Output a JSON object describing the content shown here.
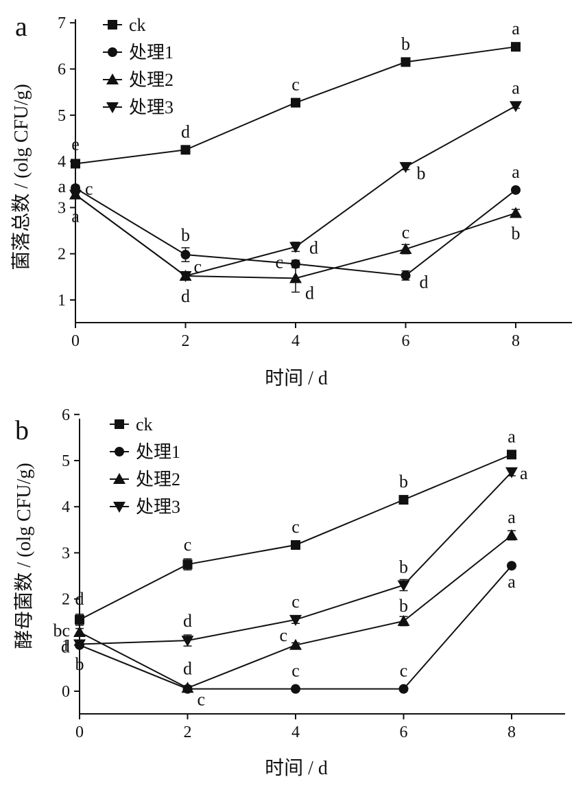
{
  "chart_data": [
    {
      "type": "line",
      "panel_label": "a",
      "xlabel": "时间 / d",
      "ylabel": "菌落总数 / (olg CFU/g)",
      "x": [
        0,
        2,
        4,
        6,
        8
      ],
      "x_tick_labels": [
        "0",
        "2",
        "4",
        "6",
        "8"
      ],
      "y_tick_labels": [
        "1",
        "2",
        "3",
        "4",
        "5",
        "6",
        "7"
      ],
      "xlim": [
        0,
        9
      ],
      "ylim": [
        0.5,
        7
      ],
      "legend_position": "top-left",
      "series": [
        {
          "name": "ck",
          "marker": "square",
          "values": [
            3.95,
            4.25,
            5.27,
            6.15,
            6.48
          ],
          "errors": [
            0.05,
            0.05,
            0.06,
            0.05,
            0.05
          ],
          "letters": [
            "e",
            "d",
            "c",
            "b",
            "a"
          ]
        },
        {
          "name": "处理1",
          "marker": "circle",
          "values": [
            3.42,
            1.98,
            1.78,
            1.53,
            3.38
          ],
          "errors": [
            0.06,
            0.15,
            0.08,
            0.1,
            0.05
          ],
          "letters": [
            "a",
            "b",
            "c",
            "d",
            "a"
          ]
        },
        {
          "name": "处理2",
          "marker": "triangle-up",
          "values": [
            3.28,
            1.52,
            1.47,
            2.1,
            2.88
          ],
          "errors": [
            0.05,
            0.06,
            0.3,
            0.1,
            0.08
          ],
          "letters": [
            "a",
            "d",
            "d",
            "c",
            "b"
          ]
        },
        {
          "name": "处理3",
          "marker": "triangle-down",
          "values": [
            3.28,
            1.52,
            2.15,
            3.88,
            5.2
          ],
          "errors": [
            0.05,
            0.08,
            0.1,
            0.06,
            0.05
          ],
          "letters": [
            "c",
            "c",
            "d",
            "b",
            "a"
          ]
        }
      ]
    },
    {
      "type": "line",
      "panel_label": "b",
      "xlabel": "时间 / d",
      "ylabel": "酵母菌数 / (olg CFU/g)",
      "x": [
        0,
        2,
        4,
        6,
        8
      ],
      "x_tick_labels": [
        "0",
        "2",
        "4",
        "6",
        "8"
      ],
      "y_tick_labels": [
        "0",
        "1",
        "2",
        "3",
        "4",
        "5",
        "6"
      ],
      "xlim": [
        0,
        9
      ],
      "ylim": [
        -0.5,
        6
      ],
      "legend_position": "top-left",
      "series": [
        {
          "name": "ck",
          "marker": "square",
          "values": [
            1.55,
            2.75,
            3.17,
            4.15,
            5.13
          ],
          "errors": [
            0.12,
            0.12,
            0.05,
            0.05,
            0.06
          ],
          "letters": [
            "d",
            "c",
            "c",
            "b",
            "a"
          ]
        },
        {
          "name": "处理1",
          "marker": "circle",
          "values": [
            1.0,
            0.05,
            0.05,
            0.05,
            2.72
          ],
          "errors": [
            0.05,
            0.04,
            0.03,
            0.03,
            0.05
          ],
          "letters": [
            "b",
            "c",
            "c",
            "c",
            "a"
          ]
        },
        {
          "name": "处理2",
          "marker": "triangle-up",
          "values": [
            1.28,
            0.07,
            1.0,
            1.52,
            3.38
          ],
          "errors": [
            0.08,
            0.05,
            0.05,
            0.1,
            0.1
          ],
          "letters": [
            "bc",
            "d",
            "c",
            "b",
            "a"
          ]
        },
        {
          "name": "处理3",
          "marker": "triangle-down",
          "values": [
            1.02,
            1.1,
            1.55,
            2.3,
            4.75
          ],
          "errors": [
            0.06,
            0.12,
            0.08,
            0.12,
            0.08
          ],
          "letters": [
            "d",
            "d",
            "c",
            "b",
            "a"
          ]
        }
      ]
    }
  ]
}
